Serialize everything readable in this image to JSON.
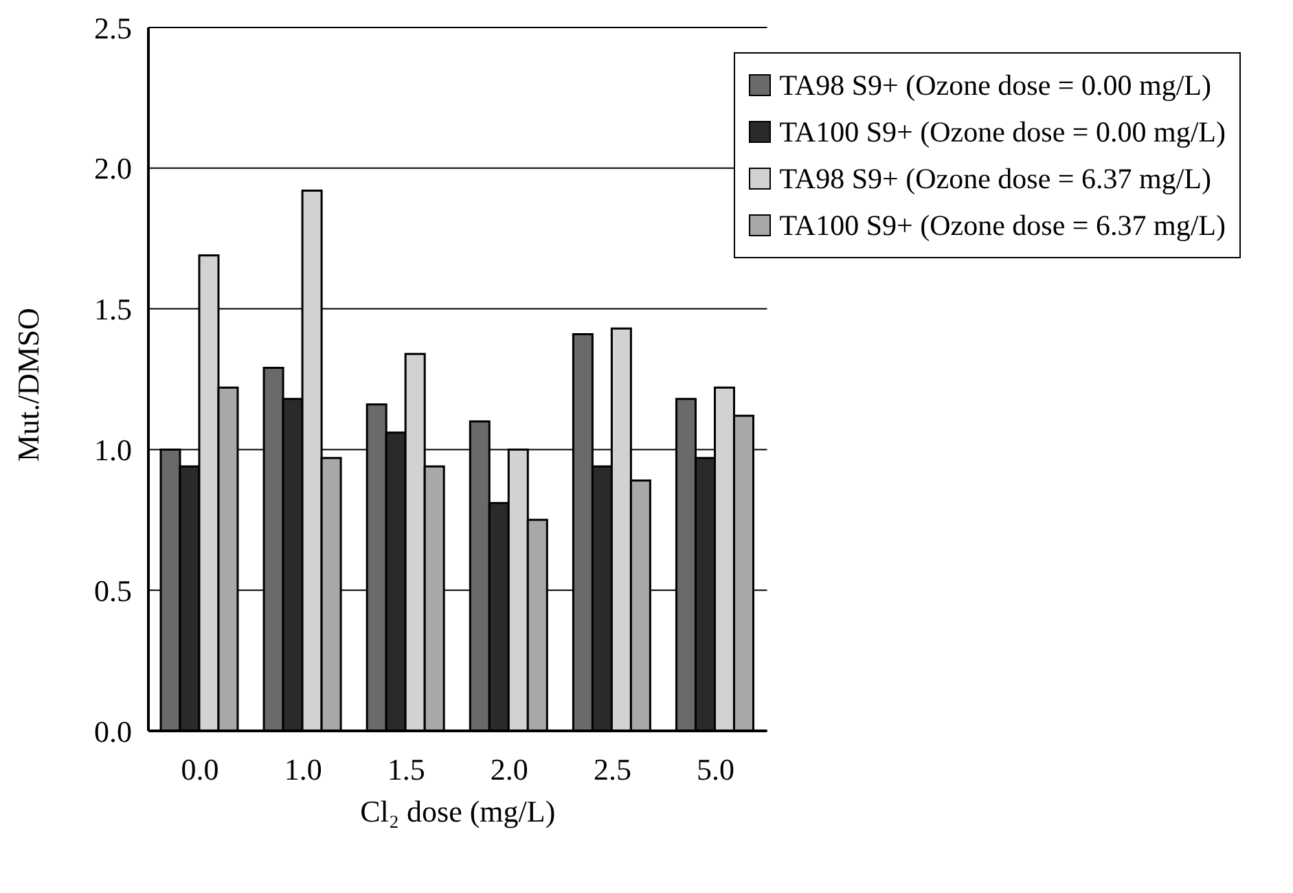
{
  "chart_data": {
    "type": "bar",
    "xlabel": "Cl₂ dose (mg/L)",
    "ylabel": "Mut./DMSO",
    "categories": [
      "0.0",
      "1.0",
      "1.5",
      "2.0",
      "2.5",
      "5.0"
    ],
    "series": [
      {
        "name": "TA98 S9+ (Ozone dose = 0.00 mg/L)",
        "color": "#6a6a6a",
        "values": [
          1.0,
          1.29,
          1.16,
          1.1,
          1.41,
          1.18
        ]
      },
      {
        "name": "TA100 S9+ (Ozone dose = 0.00 mg/L)",
        "color": "#2a2a2a",
        "values": [
          0.94,
          1.18,
          1.06,
          0.81,
          0.94,
          0.97
        ]
      },
      {
        "name": "TA98 S9+ (Ozone dose = 6.37 mg/L)",
        "color": "#d2d2d2",
        "values": [
          1.69,
          1.92,
          1.34,
          1.0,
          1.43,
          1.22
        ]
      },
      {
        "name": "TA100 S9+ (Ozone dose = 6.37 mg/L)",
        "color": "#a8a8a8",
        "values": [
          1.22,
          0.97,
          0.94,
          0.75,
          0.89,
          1.12
        ]
      }
    ],
    "ylim": [
      0,
      2.5
    ],
    "yticks": [
      {
        "value": 0,
        "label": "0.0"
      },
      0.5,
      {
        "value": 1,
        "label": "1.0"
      },
      1.5,
      {
        "value": 2,
        "label": "2.0"
      },
      2.5
    ],
    "grid": "y",
    "legend": "top right"
  }
}
